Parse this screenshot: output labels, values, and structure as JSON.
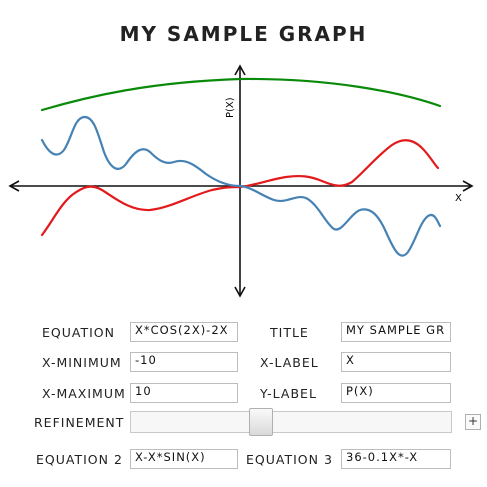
{
  "title": "MY SAMPLE GRAPH",
  "chart_data": {
    "type": "line",
    "title": "MY SAMPLE GRAPH",
    "xlabel": "X",
    "ylabel": "P(X)",
    "xlim": [
      -10,
      10
    ],
    "ylim": [
      -15,
      15
    ],
    "grid": false,
    "series": [
      {
        "equation": "X*COS(2X)-2X",
        "color": "#4682b4"
      },
      {
        "equation": "X-X*SIN(X)",
        "color": "#e31a1c"
      },
      {
        "equation": "36-0.1X*-X",
        "color": "#0a8a0a"
      }
    ]
  },
  "form": {
    "equation_label": "EQUATION",
    "equation_value": "X*COS(2X)-2X",
    "title_label": "TITLE",
    "title_value": "MY SAMPLE GR",
    "xmin_label": "X-MINIMUM",
    "xmin_value": "-10",
    "xlabel_label": "X-LABEL",
    "xlabel_value": "X",
    "xmax_label": "X-MAXIMUM",
    "xmax_value": "10",
    "ylabel_label": "Y-LABEL",
    "ylabel_value": "P(X)",
    "refinement_label": "REFINEMENT",
    "refinement_fraction": 0.4,
    "plus_label": "+",
    "equation2_label": "EQUATION 2",
    "equation2_value": "X-X*SIN(X)",
    "equation3_label": "EQUATION 3",
    "equation3_value": "36-0.1X*-X"
  }
}
